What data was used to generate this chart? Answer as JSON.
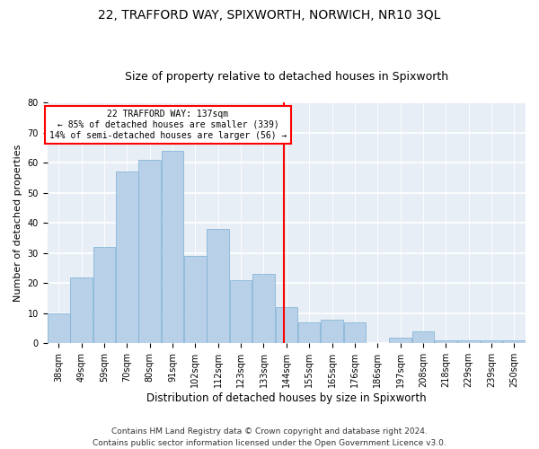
{
  "title": "22, TRAFFORD WAY, SPIXWORTH, NORWICH, NR10 3QL",
  "subtitle": "Size of property relative to detached houses in Spixworth",
  "xlabel": "Distribution of detached houses by size in Spixworth",
  "ylabel": "Number of detached properties",
  "categories": [
    "38sqm",
    "49sqm",
    "59sqm",
    "70sqm",
    "80sqm",
    "91sqm",
    "102sqm",
    "112sqm",
    "123sqm",
    "133sqm",
    "144sqm",
    "155sqm",
    "165sqm",
    "176sqm",
    "186sqm",
    "197sqm",
    "208sqm",
    "218sqm",
    "229sqm",
    "239sqm",
    "250sqm"
  ],
  "bar_values": [
    10,
    22,
    32,
    57,
    61,
    64,
    29,
    38,
    21,
    23,
    12,
    7,
    8,
    7,
    0,
    2,
    4,
    1,
    1,
    1,
    1
  ],
  "bar_color": "#b8d0e8",
  "bar_edge_color": "#7aafd4",
  "vline_color": "red",
  "annotation_text": "22 TRAFFORD WAY: 137sqm\n← 85% of detached houses are smaller (339)\n14% of semi-detached houses are larger (56) →",
  "annotation_box_color": "white",
  "annotation_box_edge": "red",
  "ylim": [
    0,
    80
  ],
  "yticks": [
    0,
    10,
    20,
    30,
    40,
    50,
    60,
    70,
    80
  ],
  "background_color": "#e8eef5",
  "grid_color": "white",
  "footer": "Contains HM Land Registry data © Crown copyright and database right 2024.\nContains public sector information licensed under the Open Government Licence v3.0.",
  "title_fontsize": 10,
  "subtitle_fontsize": 9,
  "xlabel_fontsize": 8.5,
  "ylabel_fontsize": 8,
  "tick_fontsize": 7,
  "footer_fontsize": 6.5
}
